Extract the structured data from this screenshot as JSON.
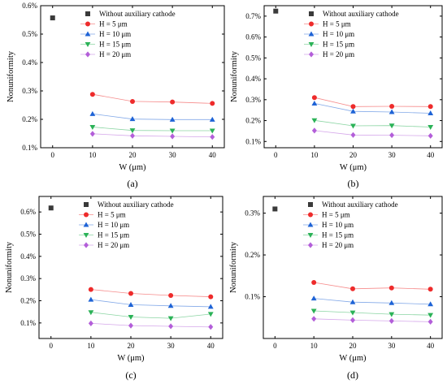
{
  "figure": {
    "series_styles": [
      {
        "color": "#3a3a3a",
        "marker": "square"
      },
      {
        "color": "#ee2b2b",
        "marker": "circle"
      },
      {
        "color": "#1e63d6",
        "marker": "triangle-up"
      },
      {
        "color": "#2bb257",
        "marker": "triangle-down"
      },
      {
        "color": "#b35ed9",
        "marker": "diamond"
      }
    ]
  },
  "chart_data": [
    {
      "type": "line",
      "panel_label": "(a)",
      "xlabel": "W (μm)",
      "ylabel": "Nonuniformity",
      "x_ticks": [
        0,
        10,
        20,
        30,
        40
      ],
      "x_tick_labels": [
        "0",
        "10",
        "20",
        "30",
        "40"
      ],
      "y_ticks": [
        0.1,
        0.2,
        0.3,
        0.4,
        0.5,
        0.6
      ],
      "y_tick_labels": [
        "0.1%",
        "0.2%",
        "0.3%",
        "0.4%",
        "0.5%",
        "0.6%"
      ],
      "xlim": [
        -3,
        43
      ],
      "ylim": [
        0.1,
        0.6
      ],
      "legend_position": "top-center",
      "series": [
        {
          "name": "Without auxiliary cathode",
          "x": [
            0
          ],
          "y": [
            0.557
          ]
        },
        {
          "name": "H = 5 μm",
          "x": [
            10,
            20,
            30,
            40
          ],
          "y": [
            0.288,
            0.263,
            0.261,
            0.256
          ]
        },
        {
          "name": "H = 10 μm",
          "x": [
            10,
            20,
            30,
            40
          ],
          "y": [
            0.219,
            0.201,
            0.199,
            0.199
          ]
        },
        {
          "name": "H = 15 μm",
          "x": [
            10,
            20,
            30,
            40
          ],
          "y": [
            0.173,
            0.161,
            0.16,
            0.16
          ]
        },
        {
          "name": "H = 20 μm",
          "x": [
            10,
            20,
            30,
            40
          ],
          "y": [
            0.149,
            0.142,
            0.14,
            0.138
          ]
        }
      ]
    },
    {
      "type": "line",
      "panel_label": "(b)",
      "xlabel": "W (μm)",
      "ylabel": "Nonuniformity",
      "x_ticks": [
        0,
        10,
        20,
        30,
        40
      ],
      "x_tick_labels": [
        "0",
        "10",
        "20",
        "30",
        "40"
      ],
      "y_ticks": [
        0.1,
        0.2,
        0.3,
        0.4,
        0.5,
        0.6,
        0.7
      ],
      "y_tick_labels": [
        "0.1%",
        "0.2%",
        "0.3%",
        "0.4%",
        "0.5%",
        "0.6%",
        "0.7%"
      ],
      "xlim": [
        -3,
        43
      ],
      "ylim": [
        0.07,
        0.75
      ],
      "legend_position": "top-center",
      "series": [
        {
          "name": "Without auxiliary cathode",
          "x": [
            0
          ],
          "y": [
            0.724
          ]
        },
        {
          "name": "H = 5 μm",
          "x": [
            10,
            20,
            30,
            40
          ],
          "y": [
            0.31,
            0.267,
            0.268,
            0.267
          ]
        },
        {
          "name": "H = 10 μm",
          "x": [
            10,
            20,
            30,
            40
          ],
          "y": [
            0.282,
            0.244,
            0.241,
            0.235
          ]
        },
        {
          "name": "H = 15 μm",
          "x": [
            10,
            20,
            30,
            40
          ],
          "y": [
            0.201,
            0.175,
            0.176,
            0.169
          ]
        },
        {
          "name": "H = 20 μm",
          "x": [
            10,
            20,
            30,
            40
          ],
          "y": [
            0.152,
            0.131,
            0.13,
            0.127
          ]
        }
      ]
    },
    {
      "type": "line",
      "panel_label": "(c)",
      "xlabel": "W (μm)",
      "ylabel": "Nonuniformity",
      "x_ticks": [
        0,
        10,
        20,
        30,
        40
      ],
      "x_tick_labels": [
        "0",
        "10",
        "20",
        "30",
        "40"
      ],
      "y_ticks": [
        0.1,
        0.2,
        0.3,
        0.4,
        0.5,
        0.6
      ],
      "y_tick_labels": [
        "0.1%",
        "0.2%",
        "0.3%",
        "0.4%",
        "0.5%",
        "0.6%"
      ],
      "xlim": [
        -3,
        43
      ],
      "ylim": [
        0.03,
        0.67
      ],
      "legend_position": "top-center",
      "series": [
        {
          "name": "Without auxiliary cathode",
          "x": [
            0
          ],
          "y": [
            0.618
          ]
        },
        {
          "name": "H = 5 μm",
          "x": [
            10,
            20,
            30,
            40
          ],
          "y": [
            0.251,
            0.233,
            0.224,
            0.218
          ]
        },
        {
          "name": "H = 10 μm",
          "x": [
            10,
            20,
            30,
            40
          ],
          "y": [
            0.205,
            0.182,
            0.177,
            0.173
          ]
        },
        {
          "name": "H = 15 μm",
          "x": [
            10,
            20,
            30,
            40
          ],
          "y": [
            0.148,
            0.127,
            0.121,
            0.14
          ]
        },
        {
          "name": "H = 20 μm",
          "x": [
            10,
            20,
            30,
            40
          ],
          "y": [
            0.098,
            0.088,
            0.085,
            0.082
          ]
        }
      ]
    },
    {
      "type": "line",
      "panel_label": "(d)",
      "xlabel": "W (μm)",
      "ylabel": "Nonuniformity",
      "x_ticks": [
        0,
        10,
        20,
        30,
        40
      ],
      "x_tick_labels": [
        "0",
        "10",
        "20",
        "30",
        "40"
      ],
      "y_ticks": [
        0.1,
        0.2,
        0.3
      ],
      "y_tick_labels": [
        "0.1%",
        "0.2%",
        "0.3%"
      ],
      "xlim": [
        -3,
        43
      ],
      "ylim": [
        0.0,
        0.34
      ],
      "legend_position": "top-center",
      "series": [
        {
          "name": "Without auxiliary cathode",
          "x": [
            0
          ],
          "y": [
            0.31
          ]
        },
        {
          "name": "H = 5 μm",
          "x": [
            10,
            20,
            30,
            40
          ],
          "y": [
            0.134,
            0.119,
            0.121,
            0.118
          ]
        },
        {
          "name": "H = 10 μm",
          "x": [
            10,
            20,
            30,
            40
          ],
          "y": [
            0.096,
            0.087,
            0.085,
            0.082
          ]
        },
        {
          "name": "H = 15 μm",
          "x": [
            10,
            20,
            30,
            40
          ],
          "y": [
            0.066,
            0.062,
            0.058,
            0.056
          ]
        },
        {
          "name": "H = 20 μm",
          "x": [
            10,
            20,
            30,
            40
          ],
          "y": [
            0.047,
            0.044,
            0.042,
            0.04
          ]
        }
      ]
    }
  ]
}
